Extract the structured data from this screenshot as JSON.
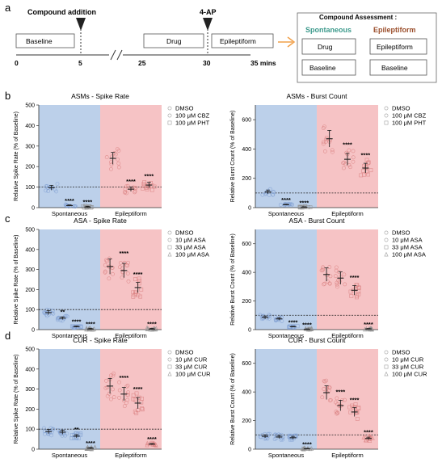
{
  "colors": {
    "spontaneous_bg": "#bcd0ea",
    "epileptiform_bg": "#f6c3c5",
    "blue_points": "#7f9fd2",
    "red_points": "#d98080",
    "dark_points": "#8e8e8e",
    "spontaneous_text": "#3d9a8c",
    "epileptiform_text": "#9b4f2c",
    "arrow": "#f1a04a"
  },
  "panel_a": {
    "label": "a",
    "compound_addition": "Compound addition",
    "fourap": "4-AP",
    "baseline": "Baseline",
    "drug": "Drug",
    "epileptiform": "Epileptiform",
    "ticks": [
      "0",
      "5",
      "25",
      "30",
      "35 mins"
    ],
    "assessment_title": "Compound Assessment :",
    "spontaneous_title": "Spontaneous",
    "epileptiform_title": "Epileptiform",
    "spont_drug": "Drug",
    "spont_baseline": "Baseline",
    "epi_epileptiform": "Epileptiform",
    "epi_baseline": "Baseline"
  },
  "group_labels": [
    "Spontaneous",
    "Epileptiform"
  ],
  "row_labels": [
    "b",
    "c",
    "d"
  ],
  "chart_data": [
    {
      "type": "scatter",
      "title": "ASMs - Spike Rate",
      "ylabel": "Relative Spike Rate (% of Baseline)",
      "ylim": [
        0,
        500
      ],
      "yticks": [
        "0",
        "100",
        "200",
        "300",
        "400",
        "500"
      ],
      "reference_line": 100,
      "legend": [
        "DMSO",
        "100 μM CBZ",
        "100 μM PHT"
      ],
      "categories": [
        "Spontaneous",
        "Epileptiform"
      ],
      "series": [
        {
          "name": "DMSO",
          "values": [
            97,
            240
          ]
        },
        {
          "name": "100 μM CBZ",
          "values": [
            10,
            90
          ]
        },
        {
          "name": "100 μM PHT",
          "values": [
            3,
            110
          ]
        }
      ],
      "sig": [
        [
          "",
          "****",
          "****"
        ],
        [
          "",
          "****",
          "****"
        ]
      ]
    },
    {
      "type": "scatter",
      "title": "ASMs - Burst Count",
      "ylabel": "Relative Burst Count (% of Baseline)",
      "ylim": [
        0,
        700
      ],
      "yticks": [
        "0",
        "200",
        "400",
        "600"
      ],
      "reference_line": 100,
      "legend": [
        "DMSO",
        "100 μM CBZ",
        "100 μM PHT"
      ],
      "categories": [
        "Spontaneous",
        "Epileptiform"
      ],
      "series": [
        {
          "name": "DMSO",
          "values": [
            107,
            470
          ]
        },
        {
          "name": "100 μM CBZ",
          "values": [
            20,
            330
          ]
        },
        {
          "name": "100 μM PHT",
          "values": [
            3,
            270
          ]
        }
      ],
      "sig": [
        [
          "",
          "****",
          "****"
        ],
        [
          "",
          "****",
          "****"
        ]
      ]
    },
    {
      "type": "scatter",
      "title": "ASA - Spike Rate",
      "ylabel": "Relative Spike Rate (% of Baseline)",
      "ylim": [
        0,
        500
      ],
      "yticks": [
        "0",
        "100",
        "200",
        "300",
        "400",
        "500"
      ],
      "reference_line": 100,
      "legend": [
        "DMSO",
        "10 μM ASA",
        "33 μM ASA",
        "100 μM ASA"
      ],
      "categories": [
        "Spontaneous",
        "Epileptiform"
      ],
      "series": [
        {
          "name": "DMSO",
          "values": [
            85,
            315
          ]
        },
        {
          "name": "10 μM ASA",
          "values": [
            57,
            295
          ]
        },
        {
          "name": "33 μM ASA",
          "values": [
            15,
            210
          ]
        },
        {
          "name": "100 μM ASA",
          "values": [
            3,
            3
          ]
        }
      ],
      "sig": [
        [
          "",
          "**",
          "****",
          "****"
        ],
        [
          "",
          "****",
          "****",
          "****"
        ]
      ]
    },
    {
      "type": "scatter",
      "title": "ASA - Burst Count",
      "ylabel": "Relative Burst Count (% of Baseline)",
      "ylim": [
        0,
        700
      ],
      "yticks": [
        "0",
        "200",
        "400",
        "600"
      ],
      "reference_line": 100,
      "legend": [
        "DMSO",
        "10 μM ASA",
        "33 μM ASA",
        "100 μM ASA"
      ],
      "categories": [
        "Spontaneous",
        "Epileptiform"
      ],
      "series": [
        {
          "name": "DMSO",
          "values": [
            85,
            385
          ]
        },
        {
          "name": "10 μM ASA",
          "values": [
            75,
            360
          ]
        },
        {
          "name": "33 μM ASA",
          "values": [
            20,
            275
          ]
        },
        {
          "name": "100 μM ASA",
          "values": [
            2,
            5
          ]
        }
      ],
      "sig": [
        [
          "",
          "",
          "****",
          "****"
        ],
        [
          "",
          "",
          "****",
          "****"
        ]
      ]
    },
    {
      "type": "scatter",
      "title": "CUR - Spike Rate",
      "ylabel": "Relative Spike Rate (% of Baseline)",
      "ylim": [
        0,
        500
      ],
      "yticks": [
        "0",
        "100",
        "200",
        "300",
        "400",
        "500"
      ],
      "reference_line": 100,
      "legend": [
        "DMSO",
        "10 μM CUR",
        "33 μM CUR",
        "100 μM CUR"
      ],
      "categories": [
        "Spontaneous",
        "Epileptiform"
      ],
      "series": [
        {
          "name": "DMSO",
          "values": [
            88,
            315
          ]
        },
        {
          "name": "10 μM CUR",
          "values": [
            85,
            275
          ]
        },
        {
          "name": "33 μM CUR",
          "values": [
            65,
            230
          ]
        },
        {
          "name": "100 μM CUR",
          "values": [
            5,
            25
          ]
        }
      ],
      "sig": [
        [
          "",
          "",
          "**",
          "****"
        ],
        [
          "",
          "****",
          "****",
          "****"
        ]
      ]
    },
    {
      "type": "scatter",
      "title": "CUR - Burst Count",
      "ylabel": "Relative Burst Count (% of Baseline)",
      "ylim": [
        0,
        700
      ],
      "yticks": [
        "0",
        "200",
        "400",
        "600"
      ],
      "reference_line": 100,
      "legend": [
        "DMSO",
        "10 μM CUR",
        "33 μM CUR",
        "100 μM CUR"
      ],
      "categories": [
        "Spontaneous",
        "Epileptiform"
      ],
      "series": [
        {
          "name": "DMSO",
          "values": [
            90,
            395
          ]
        },
        {
          "name": "10 μM CUR",
          "values": [
            85,
            305
          ]
        },
        {
          "name": "33 μM CUR",
          "values": [
            80,
            260
          ]
        },
        {
          "name": "100 μM CUR",
          "values": [
            3,
            75
          ]
        }
      ],
      "sig": [
        [
          "",
          "",
          "",
          "****"
        ],
        [
          "",
          "****",
          "****",
          "****"
        ]
      ]
    }
  ]
}
